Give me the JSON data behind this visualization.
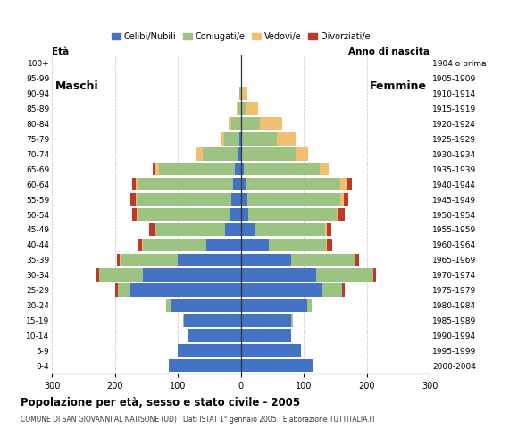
{
  "age_groups": [
    "0-4",
    "5-9",
    "10-14",
    "15-19",
    "20-24",
    "25-29",
    "30-34",
    "35-39",
    "40-44",
    "45-49",
    "50-54",
    "55-59",
    "60-64",
    "65-69",
    "70-74",
    "75-79",
    "80-84",
    "85-89",
    "90-94",
    "95-99",
    "100+"
  ],
  "birth_years": [
    "2000-2004",
    "1995-1999",
    "1990-1994",
    "1985-1989",
    "1980-1984",
    "1975-1979",
    "1970-1974",
    "1965-1969",
    "1960-1964",
    "1955-1959",
    "1950-1954",
    "1945-1949",
    "1940-1944",
    "1935-1939",
    "1930-1934",
    "1925-1929",
    "1920-1924",
    "1915-1919",
    "1910-1914",
    "1905-1909",
    "1904 o prima"
  ],
  "colors": {
    "celibe": "#4472C4",
    "coniugato": "#9DC382",
    "vedovo": "#F0C070",
    "divorziato": "#C0382B"
  },
  "males": {
    "celibe": [
      115,
      100,
      85,
      90,
      110,
      175,
      155,
      100,
      55,
      25,
      18,
      15,
      12,
      10,
      5,
      2,
      0,
      0,
      0,
      0,
      0
    ],
    "coniugato": [
      0,
      0,
      0,
      2,
      8,
      20,
      70,
      90,
      100,
      110,
      145,
      150,
      150,
      120,
      55,
      25,
      15,
      5,
      2,
      0,
      0
    ],
    "vedovo": [
      0,
      0,
      0,
      0,
      0,
      0,
      0,
      2,
      2,
      2,
      2,
      2,
      5,
      5,
      10,
      5,
      5,
      2,
      0,
      0,
      0
    ],
    "divorziato": [
      0,
      0,
      0,
      0,
      0,
      5,
      5,
      5,
      5,
      8,
      8,
      8,
      5,
      5,
      0,
      0,
      0,
      0,
      0,
      0,
      0
    ]
  },
  "females": {
    "celibe": [
      115,
      95,
      80,
      80,
      105,
      130,
      120,
      80,
      45,
      22,
      12,
      10,
      8,
      5,
      2,
      2,
      0,
      0,
      0,
      0,
      0
    ],
    "coniugato": [
      0,
      0,
      0,
      2,
      8,
      30,
      90,
      100,
      90,
      112,
      140,
      148,
      150,
      120,
      85,
      55,
      30,
      8,
      2,
      0,
      0
    ],
    "vedovo": [
      0,
      0,
      0,
      0,
      0,
      0,
      0,
      2,
      2,
      2,
      3,
      5,
      10,
      15,
      20,
      30,
      35,
      20,
      8,
      2,
      0
    ],
    "divorziato": [
      0,
      0,
      0,
      0,
      0,
      5,
      5,
      5,
      8,
      8,
      10,
      8,
      8,
      0,
      0,
      0,
      0,
      0,
      0,
      0,
      0
    ]
  },
  "xlim": 300,
  "title": "Popolazione per età, sesso e stato civile - 2005",
  "subtitle": "COMUNE DI SAN GIOVANNI AL NATISONE (UD) · Dati ISTAT 1° gennaio 2005 · Elaborazione TUTTITALIA.IT",
  "legend_labels": [
    "Celibi/Nubili",
    "Coniugati/e",
    "Vedovi/e",
    "Divorziati/e"
  ],
  "background_color": "#FFFFFF",
  "grid_color": "#AAAAAA"
}
